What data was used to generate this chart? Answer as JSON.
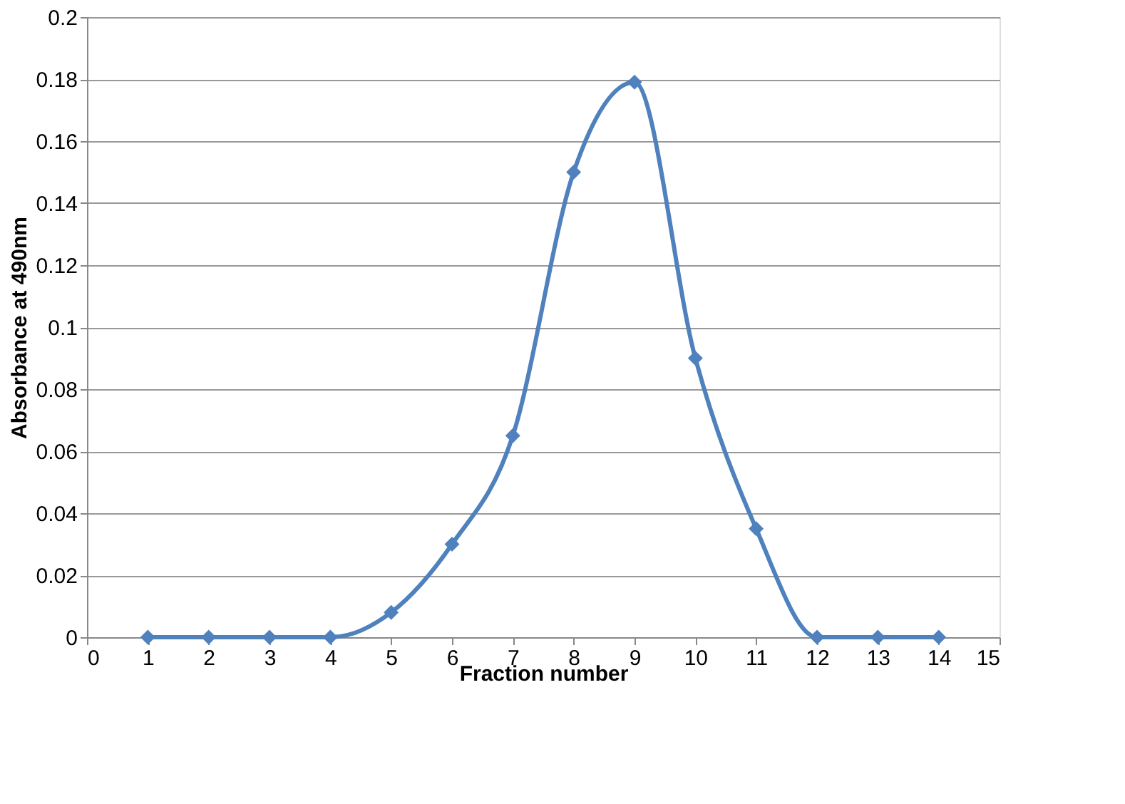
{
  "chart_data": {
    "type": "line",
    "xlabel": "Fraction number",
    "ylabel": "Absorbance at 490nm",
    "x": [
      1,
      2,
      3,
      4,
      5,
      6,
      7,
      8,
      9,
      10,
      11,
      12,
      13,
      14
    ],
    "series": [
      {
        "color": "#4f81bd",
        "values": [
          0,
          0,
          0,
          0,
          0.008,
          0.03,
          0.065,
          0.15,
          0.179,
          0.09,
          0.035,
          0,
          0,
          0
        ]
      }
    ],
    "xlim": [
      0,
      15
    ],
    "xticks": [
      0,
      1,
      2,
      3,
      4,
      5,
      6,
      7,
      8,
      9,
      10,
      11,
      12,
      13,
      14,
      15
    ],
    "ylim": [
      0,
      0.2
    ],
    "yticks": [
      0,
      0.02,
      0.04,
      0.06,
      0.08,
      0.1,
      0.12,
      0.14,
      0.16,
      0.18,
      0.2
    ],
    "grid": "y",
    "marker": "diamond",
    "line_style": "solid"
  }
}
